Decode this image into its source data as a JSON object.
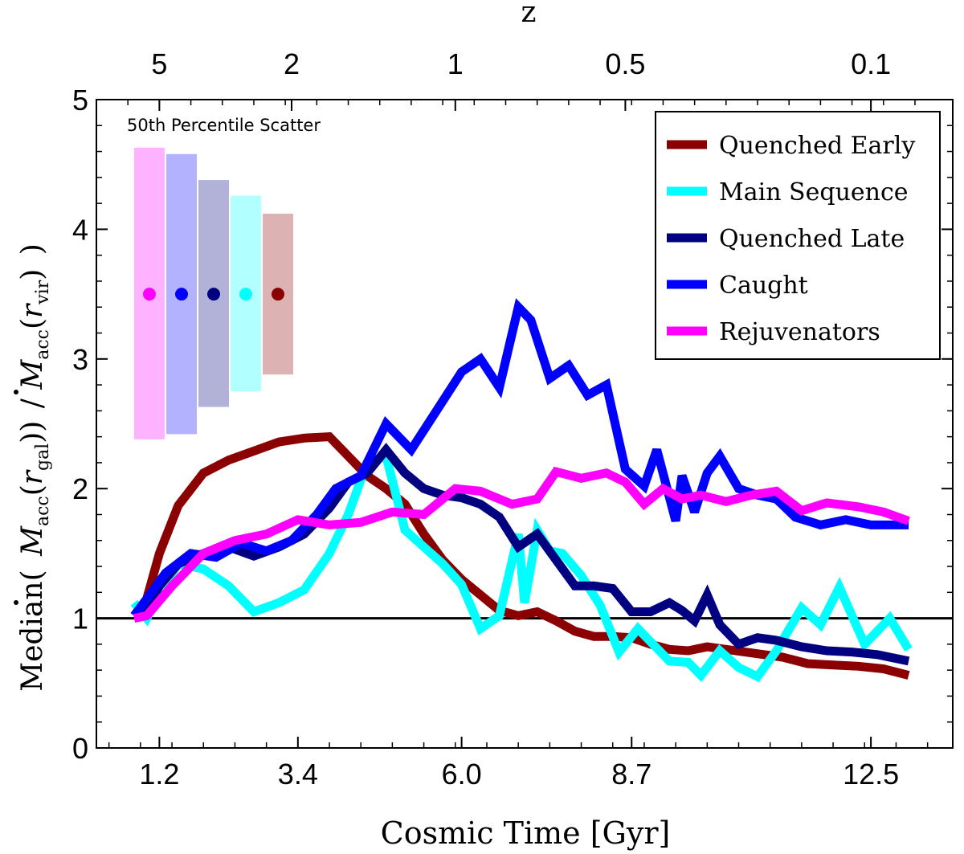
{
  "chart_data": {
    "type": "line",
    "xlabel": "Cosmic Time [Gyr]",
    "ylabel_parts": {
      "prefix": "Median(",
      "num_base": "M",
      "num_sub": "acc",
      "num_arg_r": "r",
      "num_arg_sub": "gal",
      "slash": "/",
      "den_base": "M",
      "den_sub": "acc",
      "den_arg_r": "r",
      "den_arg_sub": "vir",
      "suffix": ")"
    },
    "top_axis_label": "z",
    "x_ticks": [
      1.2,
      3.4,
      6.0,
      8.7,
      12.5
    ],
    "x_tick_labels": [
      "1.2",
      "3.4",
      "6.0",
      "8.7",
      "12.5"
    ],
    "top_ticks": [
      {
        "label": "5",
        "t": 1.2
      },
      {
        "label": "2",
        "t": 3.3
      },
      {
        "label": "1",
        "t": 5.9
      },
      {
        "label": "0.5",
        "t": 8.6
      },
      {
        "label": "0.1",
        "t": 12.5
      }
    ],
    "y_ticks": [
      0,
      1,
      2,
      3,
      4,
      5
    ],
    "y_tick_labels": [
      "0",
      "1",
      "2",
      "3",
      "4",
      "5"
    ],
    "xlim": [
      0.2,
      13.8
    ],
    "ylim": [
      0,
      5
    ],
    "reference_line_y": 1,
    "grid": false,
    "legend_position": "top-right",
    "series": [
      {
        "name": "Quenched Early",
        "color": "#8b0000",
        "x": [
          0.8,
          1.0,
          1.2,
          1.5,
          1.9,
          2.3,
          2.7,
          3.1,
          3.5,
          3.9,
          4.2,
          4.5,
          4.8,
          5.1,
          5.4,
          5.7,
          6.0,
          6.3,
          6.6,
          6.9,
          7.2,
          7.5,
          7.8,
          8.1,
          8.4,
          8.7,
          9.0,
          9.3,
          9.6,
          9.9,
          10.2,
          10.5,
          10.8,
          11.1,
          11.5,
          11.9,
          12.3,
          12.7,
          13.1
        ],
        "y": [
          1.02,
          1.15,
          1.5,
          1.87,
          2.12,
          2.22,
          2.29,
          2.36,
          2.39,
          2.4,
          2.25,
          2.1,
          2.0,
          1.88,
          1.65,
          1.45,
          1.3,
          1.18,
          1.06,
          1.02,
          1.05,
          0.98,
          0.9,
          0.86,
          0.86,
          0.85,
          0.8,
          0.76,
          0.75,
          0.78,
          0.76,
          0.74,
          0.72,
          0.7,
          0.65,
          0.64,
          0.63,
          0.61,
          0.56
        ]
      },
      {
        "name": "Main Sequence",
        "color": "#00ffff",
        "x": [
          0.8,
          1.0,
          1.2,
          1.5,
          1.9,
          2.3,
          2.7,
          3.1,
          3.5,
          3.9,
          4.2,
          4.5,
          4.8,
          5.1,
          5.4,
          5.7,
          6.0,
          6.3,
          6.6,
          6.9,
          7.0,
          7.2,
          7.4,
          7.6,
          7.9,
          8.2,
          8.5,
          8.8,
          9.0,
          9.3,
          9.6,
          9.8,
          10.1,
          10.4,
          10.7,
          11.0,
          11.4,
          11.7,
          12.0,
          12.4,
          12.8,
          13.1
        ],
        "y": [
          1.12,
          1.0,
          1.2,
          1.42,
          1.38,
          1.25,
          1.05,
          1.12,
          1.22,
          1.5,
          1.8,
          2.2,
          2.25,
          1.68,
          1.55,
          1.42,
          1.26,
          0.92,
          1.02,
          1.65,
          1.12,
          1.68,
          1.52,
          1.5,
          1.33,
          1.1,
          0.74,
          0.92,
          0.82,
          0.67,
          0.66,
          0.56,
          0.75,
          0.62,
          0.55,
          0.75,
          1.08,
          0.95,
          1.24,
          0.8,
          1.0,
          0.76
        ]
      },
      {
        "name": "Quenched Late",
        "color": "#000080",
        "x": [
          0.8,
          1.0,
          1.2,
          1.5,
          1.9,
          2.3,
          2.7,
          3.1,
          3.5,
          3.9,
          4.2,
          4.5,
          4.8,
          5.1,
          5.4,
          5.7,
          6.0,
          6.3,
          6.6,
          6.9,
          7.2,
          7.5,
          7.8,
          8.1,
          8.4,
          8.7,
          9.0,
          9.3,
          9.5,
          9.7,
          9.9,
          10.1,
          10.4,
          10.7,
          11.0,
          11.4,
          11.8,
          12.2,
          12.6,
          13.1
        ],
        "y": [
          1.02,
          1.08,
          1.25,
          1.42,
          1.5,
          1.55,
          1.48,
          1.55,
          1.65,
          1.85,
          2.05,
          2.12,
          2.3,
          2.12,
          2.0,
          1.95,
          1.93,
          1.88,
          1.78,
          1.55,
          1.65,
          1.45,
          1.25,
          1.25,
          1.23,
          1.05,
          1.05,
          1.12,
          1.06,
          0.98,
          1.18,
          0.95,
          0.8,
          0.85,
          0.83,
          0.78,
          0.75,
          0.74,
          0.72,
          0.67
        ]
      },
      {
        "name": "Caught",
        "color": "#0000ff",
        "x": [
          0.8,
          1.0,
          1.3,
          1.7,
          2.1,
          2.5,
          2.9,
          3.3,
          3.7,
          4.0,
          4.4,
          4.8,
          5.2,
          5.6,
          6.0,
          6.3,
          6.6,
          6.9,
          7.1,
          7.4,
          7.7,
          8.0,
          8.3,
          8.6,
          8.9,
          9.1,
          9.4,
          9.5,
          9.7,
          9.9,
          10.1,
          10.4,
          10.7,
          11.0,
          11.3,
          11.7,
          12.1,
          12.5,
          13.1
        ],
        "y": [
          1.02,
          1.15,
          1.35,
          1.5,
          1.47,
          1.58,
          1.52,
          1.6,
          1.8,
          2.0,
          2.1,
          2.5,
          2.3,
          2.6,
          2.9,
          3.0,
          2.78,
          3.4,
          3.3,
          2.85,
          2.95,
          2.72,
          2.8,
          2.15,
          2.02,
          2.3,
          1.75,
          2.1,
          1.82,
          2.12,
          2.25,
          2.0,
          1.95,
          1.92,
          1.78,
          1.72,
          1.76,
          1.72,
          1.72
        ]
      },
      {
        "name": "Rejuvenators",
        "color": "#ff00ff",
        "x": [
          0.8,
          1.0,
          1.4,
          1.9,
          2.4,
          2.9,
          3.4,
          3.9,
          4.4,
          4.9,
          5.4,
          5.9,
          6.3,
          6.8,
          7.2,
          7.5,
          7.9,
          8.3,
          8.6,
          8.9,
          9.2,
          9.5,
          9.8,
          10.2,
          10.6,
          11.0,
          11.4,
          11.8,
          12.3,
          12.7,
          13.1
        ],
        "y": [
          1.0,
          1.02,
          1.25,
          1.5,
          1.6,
          1.65,
          1.76,
          1.72,
          1.74,
          1.82,
          1.8,
          2.0,
          1.98,
          1.88,
          1.92,
          2.13,
          2.08,
          2.12,
          2.05,
          1.88,
          2.0,
          1.92,
          1.95,
          1.9,
          1.95,
          1.98,
          1.83,
          1.89,
          1.86,
          1.82,
          1.75
        ]
      }
    ],
    "scatter_box": {
      "title": "50th Percentile Scatter",
      "center_y": 3.5,
      "entries": [
        {
          "series": "Rejuvenators",
          "color": "#ff00ff",
          "low": 2.38,
          "high": 4.63
        },
        {
          "series": "Caught",
          "color": "#0000ff",
          "low": 2.42,
          "high": 4.58
        },
        {
          "series": "Quenched Late",
          "color": "#000080",
          "low": 2.63,
          "high": 4.38
        },
        {
          "series": "Main Sequence",
          "color": "#00ffff",
          "low": 2.75,
          "high": 4.26
        },
        {
          "series": "Quenched Early",
          "color": "#8b0000",
          "low": 2.88,
          "high": 4.12
        }
      ]
    }
  }
}
